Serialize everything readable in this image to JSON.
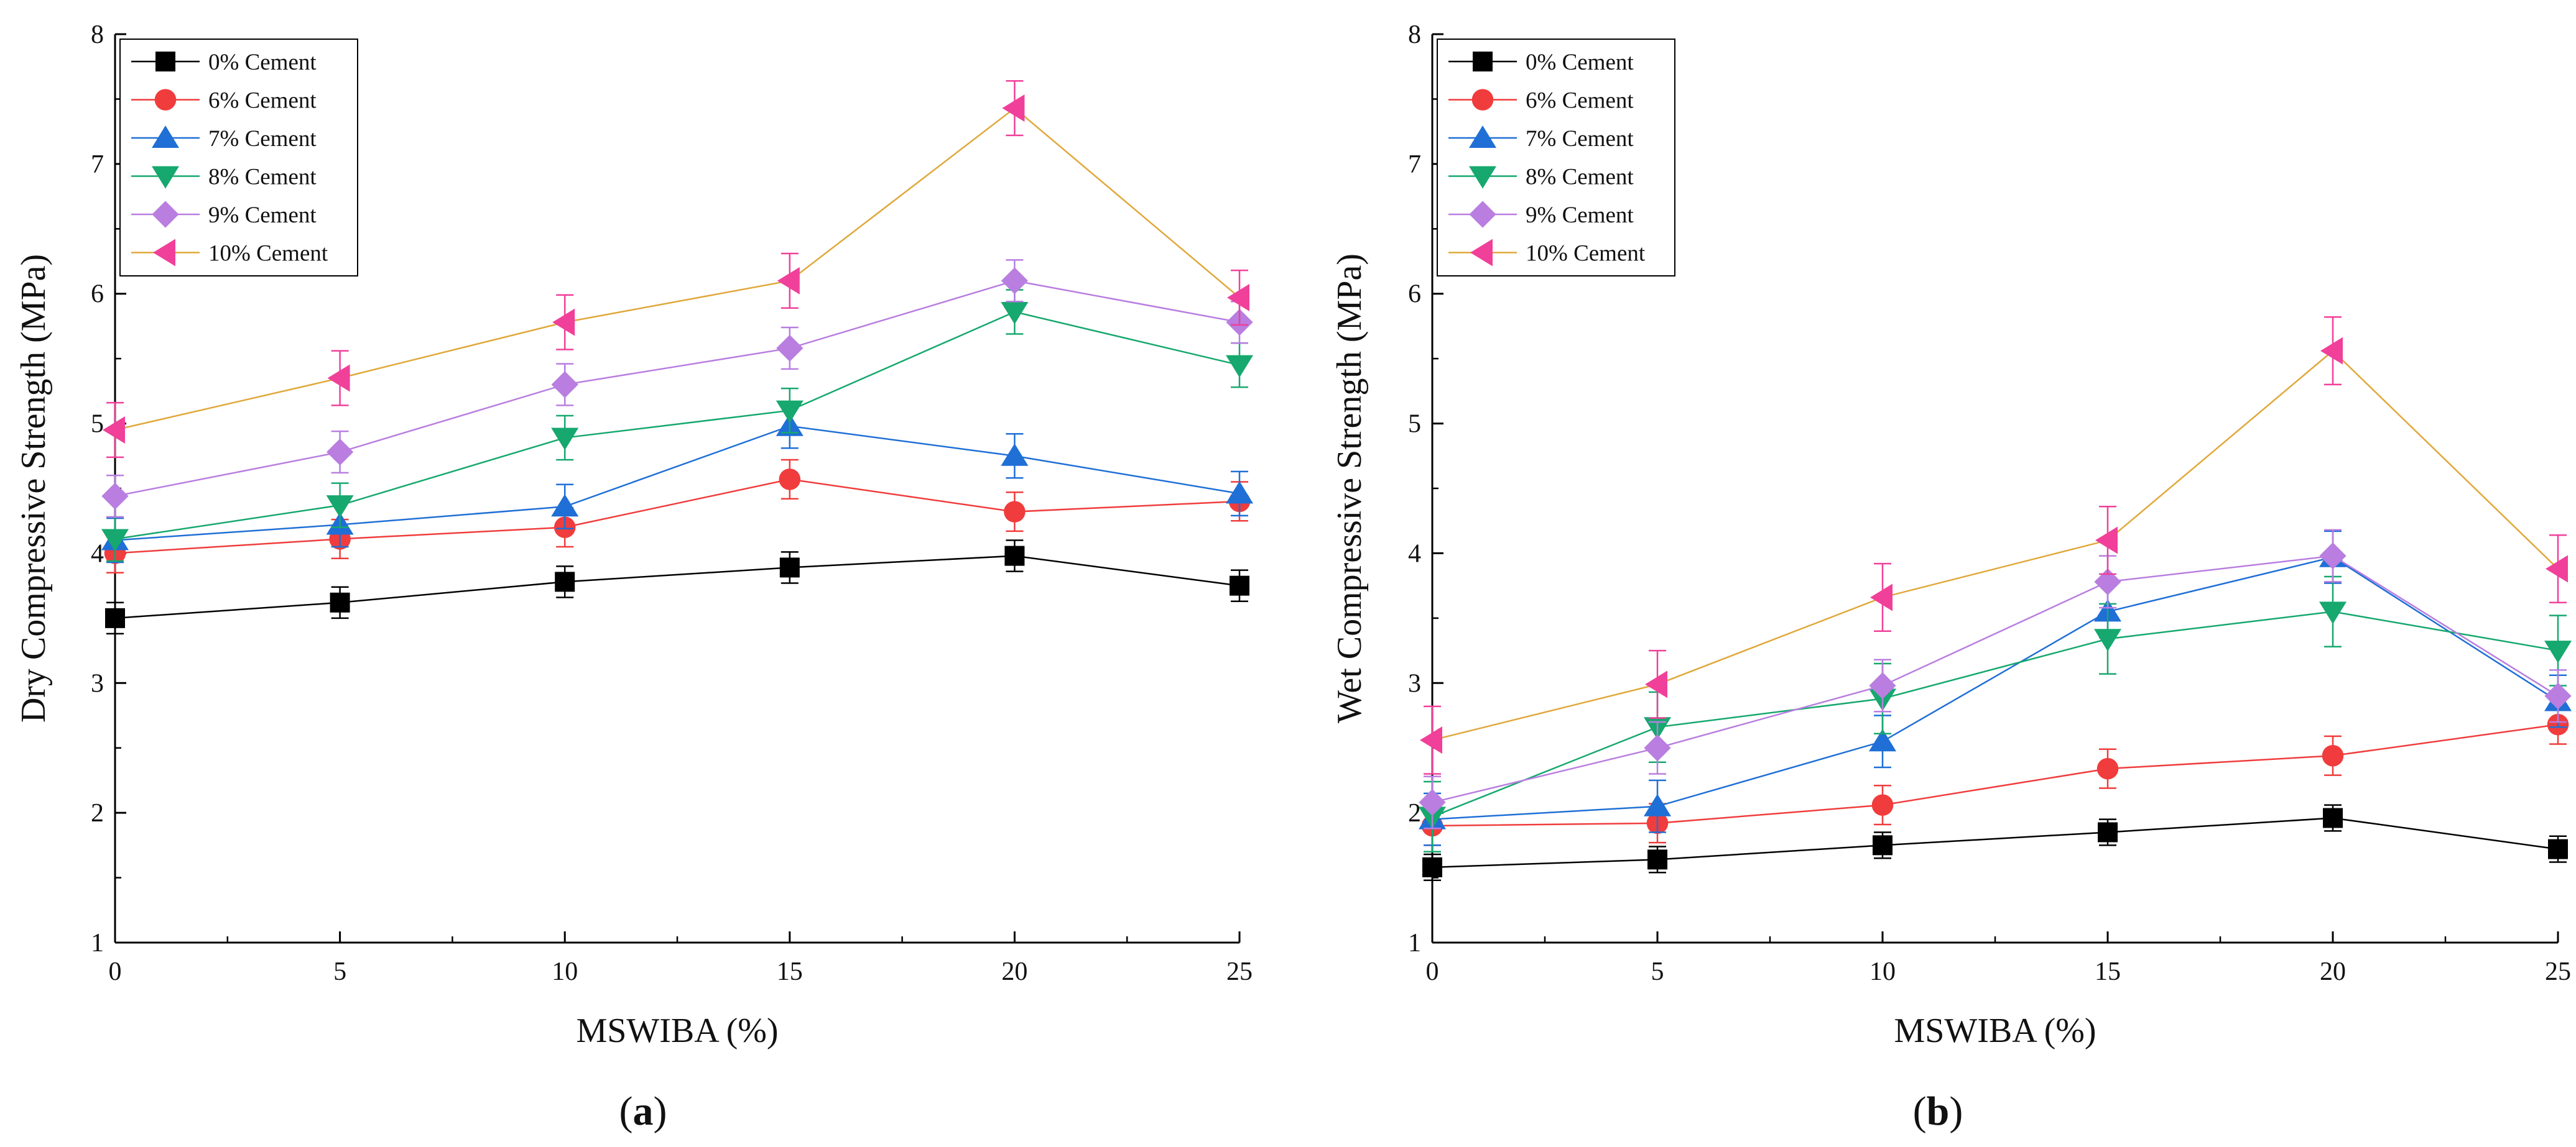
{
  "figure": {
    "panel_labels": [
      {
        "open": "(",
        "letter": "a",
        "close": ")"
      },
      {
        "open": "(",
        "letter": "b",
        "close": ")"
      }
    ]
  },
  "series_styles": [
    {
      "name": "0% Cement",
      "marker": "square",
      "marker_color": "#000000",
      "line_color": "#000000"
    },
    {
      "name": "6% Cement",
      "marker": "circle",
      "marker_color": "#f03c3c",
      "line_color": "#f03c3c"
    },
    {
      "name": "7% Cement",
      "marker": "triangle-up",
      "marker_color": "#1f6fd6",
      "line_color": "#1f6fd6"
    },
    {
      "name": "8% Cement",
      "marker": "triangle-down",
      "marker_color": "#16a86e",
      "line_color": "#16a86e"
    },
    {
      "name": "9% Cement",
      "marker": "diamond",
      "marker_color": "#b97ee0",
      "line_color": "#b97ee0"
    },
    {
      "name": "10% Cement",
      "marker": "triangle-left",
      "marker_color": "#f0409a",
      "line_color": "#e0a83a"
    }
  ],
  "chart_data": [
    {
      "type": "line",
      "panel": "a",
      "title": "",
      "xlabel": "MSWIBA (%)",
      "ylabel": "Dry Compressive Strength (MPa)",
      "xlim": [
        0,
        25
      ],
      "ylim": [
        1,
        8
      ],
      "xticks": [
        0,
        5,
        10,
        15,
        20,
        25
      ],
      "yticks": [
        1,
        2,
        3,
        4,
        5,
        6,
        7,
        8
      ],
      "legend_position": "top-left",
      "x": [
        0,
        5,
        10,
        15,
        20,
        25
      ],
      "series": [
        {
          "name": "0% Cement",
          "values": [
            3.5,
            3.62,
            3.78,
            3.89,
            3.98,
            3.75
          ],
          "errors": [
            0.12,
            0.12,
            0.12,
            0.12,
            0.12,
            0.12
          ]
        },
        {
          "name": "6% Cement",
          "values": [
            4.0,
            4.11,
            4.2,
            4.57,
            4.32,
            4.4
          ],
          "errors": [
            0.15,
            0.15,
            0.15,
            0.15,
            0.15,
            0.15
          ]
        },
        {
          "name": "7% Cement",
          "values": [
            4.1,
            4.22,
            4.36,
            4.98,
            4.75,
            4.46
          ],
          "errors": [
            0.17,
            0.17,
            0.17,
            0.17,
            0.17,
            0.17
          ]
        },
        {
          "name": "8% Cement",
          "values": [
            4.11,
            4.37,
            4.89,
            5.1,
            5.86,
            5.45
          ],
          "errors": [
            0.17,
            0.17,
            0.17,
            0.17,
            0.17,
            0.17
          ]
        },
        {
          "name": "9% Cement",
          "values": [
            4.44,
            4.78,
            5.3,
            5.58,
            6.1,
            5.78
          ],
          "errors": [
            0.16,
            0.16,
            0.16,
            0.16,
            0.16,
            0.16
          ]
        },
        {
          "name": "10% Cement",
          "values": [
            4.95,
            5.35,
            5.78,
            6.1,
            7.43,
            5.97
          ],
          "errors": [
            0.21,
            0.21,
            0.21,
            0.21,
            0.21,
            0.21
          ]
        }
      ]
    },
    {
      "type": "line",
      "panel": "b",
      "title": "",
      "xlabel": "MSWIBA (%)",
      "ylabel": "Wet Compressive Strength (MPa)",
      "xlim": [
        0,
        25
      ],
      "ylim": [
        1,
        8
      ],
      "xticks": [
        0,
        5,
        10,
        15,
        20,
        25
      ],
      "yticks": [
        1,
        2,
        3,
        4,
        5,
        6,
        7,
        8
      ],
      "legend_position": "top-left",
      "x": [
        0,
        5,
        10,
        15,
        20,
        25
      ],
      "series": [
        {
          "name": "0% Cement",
          "values": [
            1.58,
            1.64,
            1.75,
            1.85,
            1.96,
            1.72
          ],
          "errors": [
            0.1,
            0.1,
            0.1,
            0.1,
            0.1,
            0.1
          ]
        },
        {
          "name": "6% Cement",
          "values": [
            1.9,
            1.92,
            2.06,
            2.34,
            2.44,
            2.68
          ],
          "errors": [
            0.15,
            0.15,
            0.15,
            0.15,
            0.15,
            0.15
          ]
        },
        {
          "name": "7% Cement",
          "values": [
            1.95,
            2.05,
            2.55,
            3.55,
            3.97,
            2.86
          ],
          "errors": [
            0.2,
            0.2,
            0.2,
            0.2,
            0.2,
            0.2
          ]
        },
        {
          "name": "8% Cement",
          "values": [
            1.97,
            2.66,
            2.88,
            3.34,
            3.55,
            3.25
          ],
          "errors": [
            0.27,
            0.27,
            0.27,
            0.27,
            0.27,
            0.27
          ]
        },
        {
          "name": "9% Cement",
          "values": [
            2.08,
            2.5,
            2.98,
            3.78,
            3.98,
            2.9
          ],
          "errors": [
            0.2,
            0.2,
            0.2,
            0.2,
            0.2,
            0.2
          ]
        },
        {
          "name": "10% Cement",
          "values": [
            2.56,
            2.99,
            3.66,
            4.1,
            5.56,
            3.88
          ],
          "errors": [
            0.26,
            0.26,
            0.26,
            0.26,
            0.26,
            0.26
          ]
        }
      ]
    }
  ]
}
